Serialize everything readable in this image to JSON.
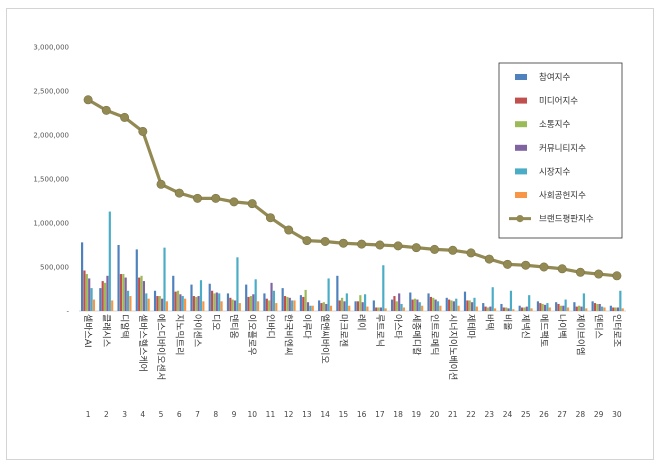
{
  "chart_data": {
    "type": "bar",
    "y_ticks": [
      "-",
      "500,000",
      "1,000,000",
      "1,500,000",
      "2,000,000",
      "2,500,000",
      "3,000,000"
    ],
    "ylim": [
      0,
      3000000
    ],
    "legend_position": "top-right",
    "grid": false,
    "ranks": [
      "1",
      "2",
      "3",
      "4",
      "5",
      "6",
      "7",
      "8",
      "9",
      "10",
      "11",
      "12",
      "13",
      "14",
      "15",
      "16",
      "17",
      "18",
      "19",
      "20",
      "21",
      "22",
      "23",
      "24",
      "25",
      "26",
      "27",
      "28",
      "29",
      "30"
    ],
    "categories": [
      "셀바스AI",
      "클래시스",
      "디알텍",
      "셀바스헬스케어",
      "에스디바이오센서",
      "지노믹트리",
      "아이센스",
      "디오",
      "덴티움",
      "이오플로우",
      "인바디",
      "한국비엔씨",
      "이루다",
      "엘앤씨바이오",
      "마크로젠",
      "레이",
      "루트로닉",
      "아스타",
      "세종메디칼",
      "인트로메딕",
      "시너지이노베이션",
      "제테마",
      "바텍",
      "비올",
      "제넥신",
      "메드팩토",
      "나이벡",
      "제이브이엠",
      "덴티스",
      "인터로조"
    ],
    "series": [
      {
        "name": "참여지수",
        "color": "#4f81bd",
        "values": [
          780000,
          260000,
          750000,
          700000,
          230000,
          400000,
          300000,
          310000,
          200000,
          300000,
          200000,
          260000,
          180000,
          120000,
          400000,
          110000,
          120000,
          130000,
          210000,
          200000,
          150000,
          220000,
          90000,
          80000,
          60000,
          110000,
          100000,
          100000,
          110000,
          60000
        ]
      },
      {
        "name": "미디어지수",
        "color": "#c0504d",
        "values": [
          460000,
          340000,
          420000,
          380000,
          170000,
          220000,
          170000,
          230000,
          150000,
          160000,
          140000,
          170000,
          160000,
          90000,
          120000,
          110000,
          40000,
          170000,
          130000,
          160000,
          130000,
          120000,
          50000,
          40000,
          40000,
          90000,
          80000,
          50000,
          90000,
          40000
        ]
      },
      {
        "name": "소통지수",
        "color": "#9bbb59",
        "values": [
          420000,
          320000,
          420000,
          400000,
          170000,
          230000,
          160000,
          200000,
          130000,
          170000,
          120000,
          160000,
          240000,
          100000,
          150000,
          180000,
          40000,
          110000,
          140000,
          150000,
          120000,
          120000,
          40000,
          40000,
          40000,
          80000,
          60000,
          60000,
          80000,
          40000
        ]
      },
      {
        "name": "커뮤니티지수",
        "color": "#8064a2",
        "values": [
          370000,
          400000,
          380000,
          340000,
          140000,
          190000,
          170000,
          210000,
          120000,
          190000,
          320000,
          150000,
          100000,
          80000,
          110000,
          100000,
          40000,
          200000,
          130000,
          130000,
          110000,
          100000,
          50000,
          30000,
          50000,
          70000,
          60000,
          50000,
          80000,
          40000
        ]
      },
      {
        "name": "시장지수",
        "color": "#4bacc6",
        "values": [
          260000,
          1130000,
          230000,
          200000,
          720000,
          170000,
          350000,
          200000,
          610000,
          360000,
          230000,
          120000,
          60000,
          370000,
          200000,
          190000,
          520000,
          80000,
          100000,
          110000,
          140000,
          150000,
          270000,
          230000,
          180000,
          90000,
          130000,
          200000,
          50000,
          230000
        ]
      },
      {
        "name": "사회공헌지수",
        "color": "#f79646",
        "values": [
          130000,
          120000,
          170000,
          140000,
          110000,
          140000,
          110000,
          110000,
          90000,
          110000,
          90000,
          120000,
          60000,
          60000,
          60000,
          50000,
          30000,
          40000,
          60000,
          60000,
          60000,
          50000,
          30000,
          20000,
          30000,
          40000,
          40000,
          30000,
          40000,
          30000
        ]
      },
      {
        "name": "브랜드평판지수",
        "color": "#938953",
        "type": "line",
        "values": [
          2400000,
          2280000,
          2200000,
          2040000,
          1440000,
          1340000,
          1280000,
          1280000,
          1240000,
          1220000,
          1060000,
          920000,
          800000,
          790000,
          770000,
          760000,
          750000,
          740000,
          720000,
          700000,
          690000,
          660000,
          590000,
          530000,
          520000,
          500000,
          480000,
          440000,
          420000,
          400000
        ]
      }
    ]
  }
}
